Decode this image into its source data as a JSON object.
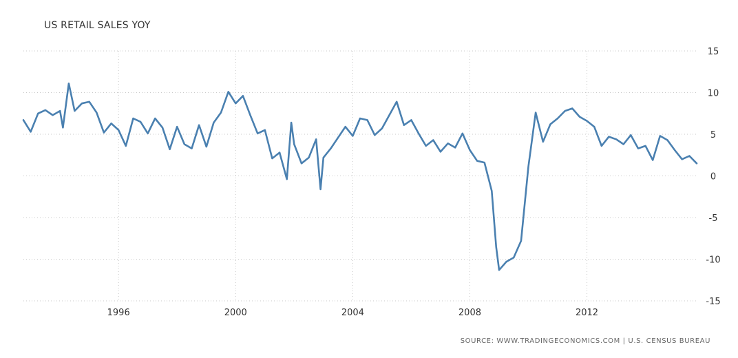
{
  "chart_data": {
    "type": "line",
    "title": "US RETAIL SALES YOY",
    "source": "SOURCE: WWW.TRADINGECONOMICS.COM | U.S. CENSUS BUREAU",
    "xlabel": "",
    "ylabel": "",
    "ylim": [
      -15,
      15
    ],
    "xlim": [
      1992.75,
      2015.75
    ],
    "yticks": [
      15,
      10,
      5,
      0,
      -5,
      -10,
      -15
    ],
    "xticks": [
      1996,
      2000,
      2004,
      2008,
      2012
    ],
    "grid": true,
    "legend": "none",
    "line_color": "#4a80b0",
    "series": [
      {
        "x": [
          1992.75,
          1993.0,
          1993.25,
          1993.5,
          1993.75,
          1994.0,
          1994.1,
          1994.3,
          1994.5,
          1994.75,
          1995.0,
          1995.25,
          1995.5,
          1995.75,
          1996.0,
          1996.25,
          1996.5,
          1996.75,
          1997.0,
          1997.25,
          1997.5,
          1997.75,
          1998.0,
          1998.25,
          1998.5,
          1998.75,
          1999.0,
          1999.25,
          1999.5,
          1999.75,
          2000.0,
          2000.25,
          2000.5,
          2000.75,
          2001.0,
          2001.25,
          2001.5,
          2001.75,
          2001.9,
          2002.0,
          2002.25,
          2002.5,
          2002.75,
          2002.9,
          2003.0,
          2003.25,
          2003.5,
          2003.75,
          2004.0,
          2004.25,
          2004.5,
          2004.75,
          2005.0,
          2005.25,
          2005.5,
          2005.75,
          2006.0,
          2006.25,
          2006.5,
          2006.75,
          2007.0,
          2007.25,
          2007.5,
          2007.75,
          2008.0,
          2008.25,
          2008.5,
          2008.75,
          2008.9,
          2009.0,
          2009.25,
          2009.5,
          2009.75,
          2010.0,
          2010.25,
          2010.5,
          2010.75,
          2011.0,
          2011.25,
          2011.5,
          2011.75,
          2012.0,
          2012.25,
          2012.5,
          2012.75,
          2013.0,
          2013.25,
          2013.5,
          2013.75,
          2014.0,
          2014.25,
          2014.5,
          2014.75,
          2015.0,
          2015.25,
          2015.5,
          2015.75
        ],
        "values": [
          6.7,
          5.3,
          7.5,
          7.9,
          7.3,
          7.8,
          5.8,
          11.1,
          7.8,
          8.7,
          8.9,
          7.6,
          5.2,
          6.3,
          5.5,
          3.6,
          6.9,
          6.5,
          5.1,
          6.9,
          5.8,
          3.2,
          5.9,
          3.8,
          3.3,
          6.1,
          3.5,
          6.4,
          7.6,
          10.1,
          8.7,
          9.6,
          7.3,
          5.1,
          5.5,
          2.1,
          2.8,
          -0.4,
          6.4,
          3.8,
          1.5,
          2.2,
          4.4,
          -1.6,
          2.2,
          3.3,
          4.6,
          5.9,
          4.8,
          6.9,
          6.7,
          4.9,
          5.7,
          7.3,
          8.9,
          6.1,
          6.7,
          5.1,
          3.6,
          4.3,
          2.9,
          3.9,
          3.4,
          5.1,
          3.1,
          1.8,
          1.6,
          -1.8,
          -8.5,
          -11.3,
          -10.3,
          -9.8,
          -7.8,
          1.1,
          7.6,
          4.1,
          6.2,
          6.9,
          7.8,
          8.1,
          7.1,
          6.6,
          5.9,
          3.6,
          4.7,
          4.4,
          3.8,
          4.9,
          3.3,
          3.6,
          1.9,
          4.8,
          4.3,
          3.1,
          2.0,
          2.4,
          1.5
        ]
      }
    ]
  }
}
